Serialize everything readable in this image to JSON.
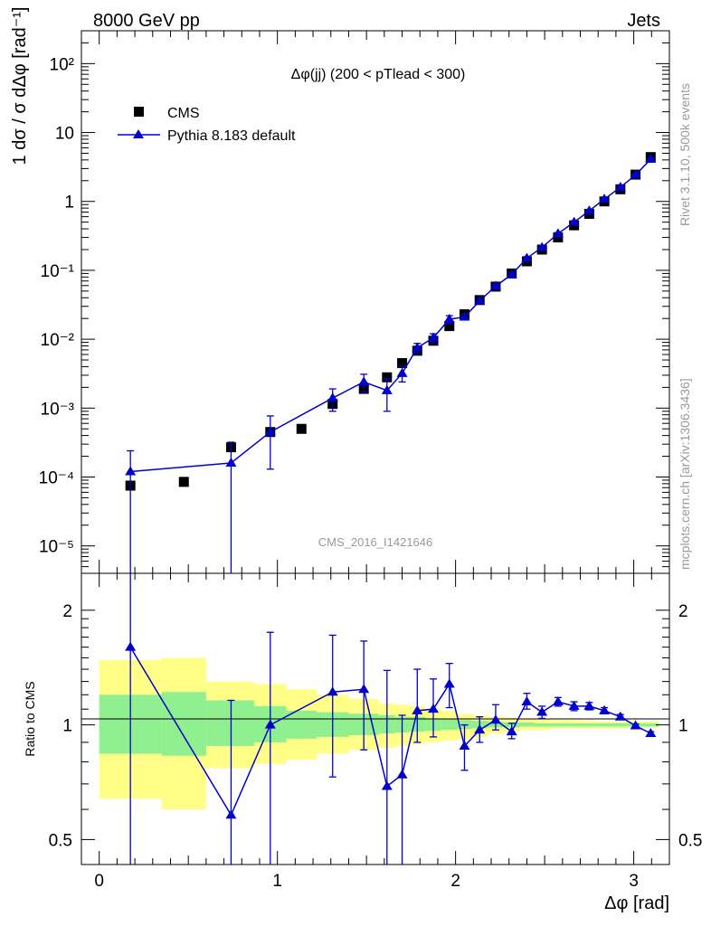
{
  "header": {
    "left": "8000 GeV pp",
    "right": "Jets"
  },
  "side_labels": {
    "rivet": "Rivet 3.1.10,  500k events",
    "source": "mcplots.cern.ch [arXiv:1306.3436]"
  },
  "chart_data": {
    "type": "line",
    "title": "Δφ(jj) (200 < pTlead <  300)",
    "watermark": "CMS_2016_I1421646",
    "xlabel": "Δφ [rad]",
    "ylabel_top": "1 dσ / σ dΔφ [rad⁻¹]",
    "ylabel_ratio": "Ratio to CMS",
    "xlim": [
      -0.1,
      3.2
    ],
    "ylim_main": [
      4e-06,
      300
    ],
    "ylim_ratio": [
      0.43,
      2.5
    ],
    "log_y_main": true,
    "log_y_ratio": true,
    "x_ticks": [
      0,
      1,
      2,
      3
    ],
    "y_ticks_main": [
      "10⁻⁵",
      "10⁻⁴",
      "10⁻³",
      "10⁻²",
      "10⁻¹",
      "1",
      "10",
      "10²"
    ],
    "y_ticks_ratio": [
      "0.5",
      "1",
      "2"
    ],
    "legend": [
      {
        "name": "CMS",
        "marker": "square",
        "color": "#000000"
      },
      {
        "name": "Pythia 8.183 default",
        "marker": "triangle",
        "color": "#0000cc"
      }
    ],
    "bins": [
      [
        0.0,
        0.35
      ],
      [
        0.35,
        0.6
      ],
      [
        0.6,
        0.87
      ],
      [
        0.87,
        1.05
      ],
      [
        1.05,
        1.22
      ],
      [
        1.22,
        1.4
      ],
      [
        1.4,
        1.57
      ],
      [
        1.57,
        1.66
      ],
      [
        1.66,
        1.74
      ],
      [
        1.74,
        1.83
      ],
      [
        1.83,
        1.92
      ],
      [
        1.92,
        2.01
      ],
      [
        2.01,
        2.09
      ],
      [
        2.09,
        2.18
      ],
      [
        2.18,
        2.27
      ],
      [
        2.27,
        2.36
      ],
      [
        2.36,
        2.44
      ],
      [
        2.44,
        2.53
      ],
      [
        2.53,
        2.62
      ],
      [
        2.62,
        2.71
      ],
      [
        2.71,
        2.79
      ],
      [
        2.79,
        2.88
      ],
      [
        2.88,
        2.97
      ],
      [
        2.97,
        3.05
      ],
      [
        3.05,
        3.14
      ]
    ],
    "cms": {
      "x": [
        0.175,
        0.475,
        0.74,
        0.96,
        1.135,
        1.31,
        1.485,
        1.615,
        1.7,
        1.785,
        1.875,
        1.965,
        2.05,
        2.135,
        2.225,
        2.315,
        2.4,
        2.485,
        2.575,
        2.665,
        2.75,
        2.835,
        2.925,
        3.01,
        3.095
      ],
      "y": [
        7.5e-05,
        8.5e-05,
        0.00027,
        0.00045,
        0.0005,
        0.00115,
        0.0019,
        0.0028,
        0.0045,
        0.0068,
        0.0095,
        0.0155,
        0.023,
        0.037,
        0.058,
        0.09,
        0.135,
        0.2,
        0.3,
        0.45,
        0.66,
        1.0,
        1.5,
        2.45,
        4.4
      ]
    },
    "pythia": {
      "x": [
        0.175,
        0.74,
        0.96,
        1.31,
        1.485,
        1.615,
        1.7,
        1.785,
        1.875,
        1.965,
        2.05,
        2.135,
        2.225,
        2.315,
        2.4,
        2.485,
        2.575,
        2.665,
        2.75,
        2.835,
        2.925,
        3.01,
        3.095
      ],
      "y": [
        0.00012,
        0.00016,
        0.00045,
        0.0014,
        0.0024,
        0.0018,
        0.0032,
        0.0075,
        0.0105,
        0.0195,
        0.021,
        0.036,
        0.059,
        0.087,
        0.15,
        0.215,
        0.34,
        0.5,
        0.73,
        1.08,
        1.6,
        2.42,
        4.1
      ],
      "yerr_low": [
        0.00012,
        0.00016,
        0.00032,
        0.0005,
        0.0007,
        0.0009,
        0.0008,
        0.0012,
        0.0015,
        0.0025,
        0.002,
        0.003,
        0.004,
        0.005,
        0.008,
        0.01,
        0.013,
        0.02,
        0.03,
        0.04,
        0.06,
        0.08,
        0.12
      ],
      "yerr_high": [
        0.00012,
        0.00016,
        0.00032,
        0.0005,
        0.0007,
        0.0009,
        0.0008,
        0.0012,
        0.0015,
        0.0025,
        0.002,
        0.003,
        0.004,
        0.005,
        0.008,
        0.01,
        0.013,
        0.02,
        0.03,
        0.04,
        0.06,
        0.08,
        0.12
      ]
    },
    "ratio": {
      "x": [
        0.175,
        0.74,
        0.96,
        1.31,
        1.485,
        1.615,
        1.7,
        1.785,
        1.875,
        1.965,
        2.05,
        2.135,
        2.225,
        2.315,
        2.4,
        2.485,
        2.575,
        2.665,
        2.75,
        2.835,
        2.925,
        3.01,
        3.095
      ],
      "y": [
        1.6,
        0.58,
        1.0,
        1.22,
        1.24,
        0.69,
        0.74,
        1.09,
        1.1,
        1.28,
        0.88,
        0.97,
        1.03,
        0.96,
        1.15,
        1.08,
        1.15,
        1.12,
        1.12,
        1.09,
        1.05,
        0.995,
        0.95
      ],
      "err_low": [
        1.6,
        0.58,
        1.0,
        0.49,
        0.38,
        0.69,
        0.32,
        0.19,
        0.17,
        0.17,
        0.12,
        0.07,
        0.06,
        0.04,
        0.05,
        0.04,
        0.03,
        0.03,
        0.025,
        0.02,
        0.015,
        0.01,
        0.01
      ],
      "err_high": [
        0.9,
        0.58,
        0.75,
        0.5,
        0.42,
        0.7,
        0.32,
        0.31,
        0.22,
        0.17,
        0.12,
        0.08,
        0.1,
        0.05,
        0.06,
        0.04,
        0.03,
        0.03,
        0.025,
        0.02,
        0.015,
        0.01,
        0.01
      ]
    },
    "band_stat": {
      "low": [
        0.84,
        0.83,
        0.88,
        0.9,
        0.92,
        0.93,
        0.94,
        0.95,
        0.955,
        0.96,
        0.965,
        0.97,
        0.975,
        0.98,
        0.985,
        0.985,
        0.99,
        0.99,
        0.99,
        0.99,
        0.99,
        0.99,
        0.99,
        0.99,
        0.99
      ],
      "high": [
        1.2,
        1.22,
        1.16,
        1.12,
        1.09,
        1.08,
        1.07,
        1.06,
        1.05,
        1.05,
        1.04,
        1.035,
        1.03,
        1.025,
        1.02,
        1.015,
        1.015,
        1.01,
        1.01,
        1.01,
        1.01,
        1.01,
        1.01,
        1.01,
        1.01
      ]
    },
    "band_total": {
      "low": [
        0.64,
        0.6,
        0.77,
        0.79,
        0.81,
        0.84,
        0.86,
        0.87,
        0.88,
        0.89,
        0.9,
        0.91,
        0.92,
        0.93,
        0.95,
        0.96,
        0.97,
        0.97,
        0.98,
        0.98,
        0.98,
        0.98,
        0.98,
        0.985,
        0.985
      ],
      "high": [
        1.48,
        1.5,
        1.3,
        1.28,
        1.24,
        1.2,
        1.17,
        1.14,
        1.13,
        1.12,
        1.1,
        1.09,
        1.07,
        1.06,
        1.05,
        1.045,
        1.04,
        1.035,
        1.03,
        1.03,
        1.025,
        1.02,
        1.02,
        1.02,
        1.02
      ]
    }
  }
}
